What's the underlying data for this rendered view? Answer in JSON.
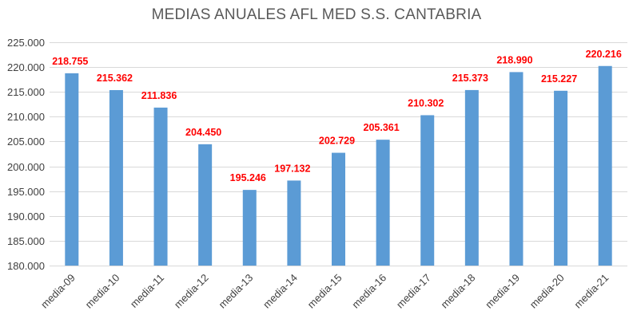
{
  "chart_data": {
    "type": "bar",
    "title": "MEDIAS ANUALES AFL MED S.S. CANTABRIA",
    "xlabel": "",
    "ylabel": "",
    "categories": [
      "media-09",
      "media-10",
      "media-11",
      "media-12",
      "media-13",
      "media-14",
      "media-15",
      "media-16",
      "media-17",
      "media-18",
      "media-19",
      "media-20",
      "media-21"
    ],
    "values": [
      218755,
      215362,
      211836,
      204450,
      195246,
      197132,
      202729,
      205361,
      210302,
      215373,
      218990,
      215227,
      220216
    ],
    "data_labels": [
      "218.755",
      "215.362",
      "211.836",
      "204.450",
      "195.246",
      "197.132",
      "202.729",
      "205.361",
      "210.302",
      "215.373",
      "218.990",
      "215.227",
      "220.216"
    ],
    "ylim": [
      180000,
      225000
    ],
    "y_ticks": [
      180000,
      185000,
      190000,
      195000,
      200000,
      205000,
      210000,
      215000,
      220000,
      225000
    ],
    "y_tick_labels": [
      "180.000",
      "185.000",
      "190.000",
      "195.000",
      "200.000",
      "205.000",
      "210.000",
      "215.000",
      "220.000",
      "225.000"
    ],
    "grid": true,
    "legend": "none",
    "colors": {
      "bar": "#5b9bd5",
      "data_label": "#ff0000",
      "grid": "#d9d9d9",
      "text": "#404040"
    }
  }
}
